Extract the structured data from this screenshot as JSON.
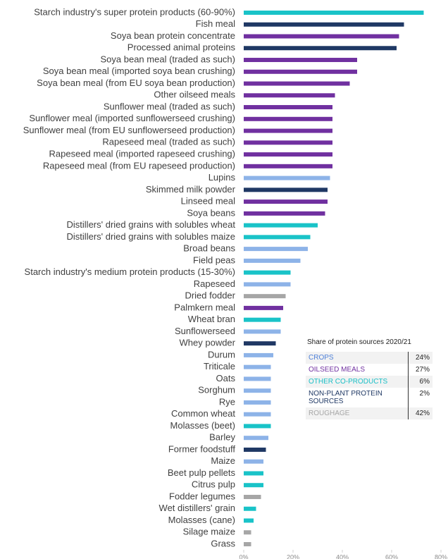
{
  "chart_data": {
    "type": "hbar",
    "categories": [
      "Starch industry's super protein products (60-90%)",
      "Fish meal",
      "Soya bean protein concentrate",
      "Processed animal proteins",
      "Soya bean meal (traded as such)",
      "Soya bean meal (imported soya bean crushing)",
      "Soya bean meal (from EU soya bean production)",
      "Other oilseed meals",
      "Sunflower meal (traded as such)",
      "Sunflower meal (imported sunflowerseed crushing)",
      "Sunflower meal (from EU sunflowerseed production)",
      "Rapeseed meal (traded as such)",
      "Rapeseed meal (imported rapeseed crushing)",
      "Rapeseed meal (from EU rapeseed production)",
      "Lupins",
      "Skimmed milk powder",
      "Linseed meal",
      "Soya beans",
      "Distillers' dried grains with solubles wheat",
      "Distillers' dried grains with solubles maize",
      "Broad beans",
      "Field peas",
      "Starch industry's medium protein products (15-30%)",
      "Rapeseed",
      "Dried fodder",
      "Palmkern meal",
      "Wheat bran",
      "Sunflowerseed",
      "Whey powder",
      "Durum",
      "Triticale",
      "Oats",
      "Sorghum",
      "Rye",
      "Common  wheat",
      "Molasses (beet)",
      "Barley",
      "Former foodstuff",
      "Maize",
      "Beet pulp pellets",
      "Citrus pulp",
      "Fodder legumes",
      "Wet distillers' grain",
      "Molasses (cane)",
      "Silage maize",
      "Grass"
    ],
    "values": [
      73,
      65,
      63,
      62,
      46,
      46,
      43,
      37,
      36,
      36,
      36,
      36,
      36,
      36,
      35,
      34,
      34,
      33,
      30,
      27,
      26,
      23,
      19,
      19,
      17,
      16,
      15,
      15,
      13,
      12,
      11,
      11,
      11,
      11,
      11,
      11,
      10,
      9,
      8,
      8,
      8,
      7,
      5,
      4,
      3,
      3
    ],
    "colors": [
      "#19c3c8",
      "#1f3864",
      "#7030a0",
      "#1f3864",
      "#7030a0",
      "#7030a0",
      "#7030a0",
      "#7030a0",
      "#7030a0",
      "#7030a0",
      "#7030a0",
      "#7030a0",
      "#7030a0",
      "#7030a0",
      "#8db3e8",
      "#1f3864",
      "#7030a0",
      "#7030a0",
      "#19c3c8",
      "#19c3c8",
      "#8db3e8",
      "#8db3e8",
      "#19c3c8",
      "#8db3e8",
      "#a6a6a6",
      "#7030a0",
      "#19c3c8",
      "#8db3e8",
      "#1f3864",
      "#8db3e8",
      "#8db3e8",
      "#8db3e8",
      "#8db3e8",
      "#8db3e8",
      "#8db3e8",
      "#19c3c8",
      "#8db3e8",
      "#1f3864",
      "#8db3e8",
      "#19c3c8",
      "#19c3c8",
      "#a6a6a6",
      "#19c3c8",
      "#19c3c8",
      "#a6a6a6",
      "#a6a6a6"
    ],
    "xlim": [
      0,
      80
    ],
    "xticks": [
      {
        "value": 0,
        "label": "0%"
      },
      {
        "value": 20,
        "label": "20%"
      },
      {
        "value": 40,
        "label": "40%"
      },
      {
        "value": 60,
        "label": "60%"
      },
      {
        "value": 80,
        "label": "80%"
      }
    ],
    "grid": false
  },
  "table": {
    "title": "Share of protein sources 2020/21",
    "rows": [
      [
        "CROPS",
        "24%"
      ],
      [
        "OILSEED MEALS",
        "27%"
      ],
      [
        "OTHER CO-PRODUCTS",
        "6%"
      ],
      [
        "NON-PLANT PROTEIN SOURCES",
        "2%"
      ],
      [
        "ROUGHAGE",
        "42%"
      ]
    ]
  }
}
